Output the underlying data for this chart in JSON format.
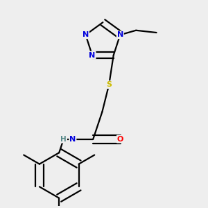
{
  "background_color": "#eeeeee",
  "atom_colors": {
    "N": "#0000dd",
    "O": "#ff0000",
    "S": "#ccbb00",
    "C": "#000000",
    "H": "#558888"
  },
  "bond_color": "#000000",
  "bond_width": 1.6,
  "figsize": [
    3.0,
    3.0
  ],
  "dpi": 100
}
